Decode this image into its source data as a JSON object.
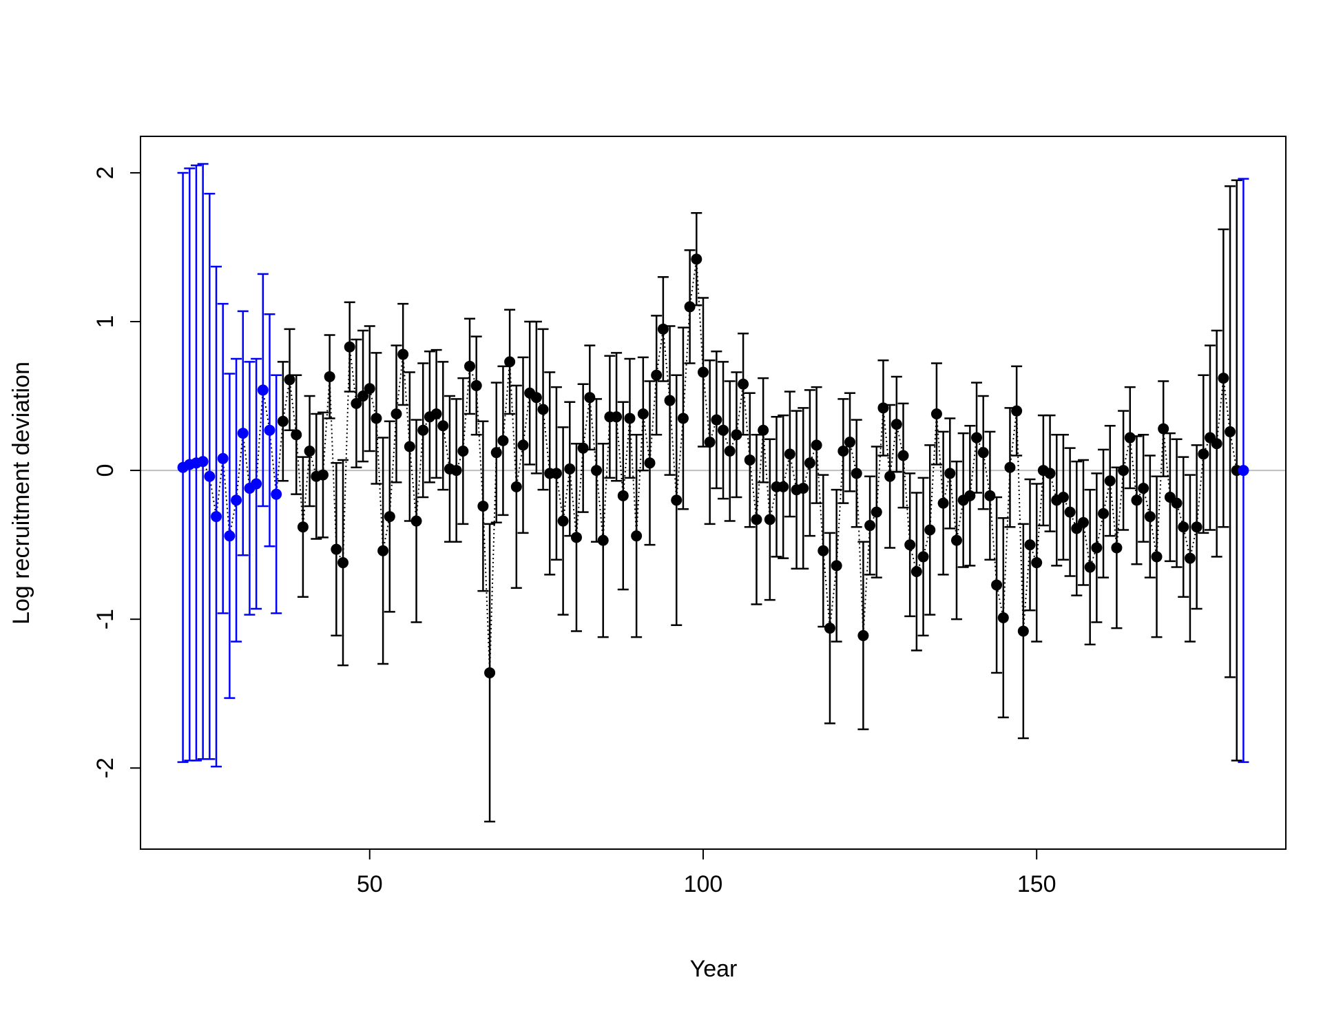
{
  "chart_data": {
    "type": "errorbar",
    "xlabel": "Year",
    "ylabel": "Log recruitment deviation",
    "xlim": [
      15.64,
      187.36
    ],
    "ylim": [
      -2.545,
      2.245
    ],
    "xticks": [
      50,
      100,
      150
    ],
    "yticks": [
      -2,
      -1,
      0,
      1,
      2
    ],
    "hline": 0,
    "hline_color": "#bebebe",
    "series": [
      {
        "color": "#0000ff",
        "x": [
          22,
          23,
          24,
          25,
          26,
          27,
          28,
          29,
          30,
          31,
          32,
          33,
          34,
          35,
          36
        ],
        "values": [
          0.02,
          0.04,
          0.05,
          0.06,
          -0.04,
          -0.31,
          0.08,
          -0.44,
          -0.2,
          0.25,
          -0.12,
          -0.09,
          0.54,
          0.27,
          -0.16
        ],
        "errors": [
          1.98,
          1.99,
          2.0,
          2.0,
          1.9,
          1.68,
          1.04,
          1.09,
          0.95,
          0.82,
          0.85,
          0.84,
          0.78,
          0.78,
          0.8
        ]
      },
      {
        "color": "#000000",
        "x": [
          37,
          38,
          39,
          40,
          41,
          42,
          43,
          44,
          45,
          46,
          47,
          48,
          49,
          50,
          51,
          52,
          53,
          54,
          55,
          56,
          57,
          58,
          59,
          60,
          61,
          62,
          63,
          64,
          65,
          66,
          67,
          68,
          69,
          70,
          71,
          72,
          73,
          74,
          75,
          76,
          77,
          78,
          79,
          80,
          81,
          82,
          83,
          84,
          85,
          86,
          87,
          88,
          89,
          90,
          91,
          92,
          93,
          94,
          95,
          96,
          97,
          98,
          99,
          100,
          101,
          102,
          103,
          104,
          105,
          106,
          107,
          108,
          109,
          110,
          111,
          112,
          113,
          114,
          115,
          116,
          117,
          118,
          119,
          120,
          121,
          122,
          123,
          124,
          125,
          126,
          127,
          128,
          129,
          130,
          131,
          132,
          133,
          134,
          135,
          136,
          137,
          138,
          139,
          140,
          141,
          142,
          143,
          144,
          145,
          146,
          147,
          148,
          149,
          150,
          151,
          152,
          153,
          154,
          155,
          156,
          157,
          158,
          159,
          160,
          161,
          162,
          163,
          164,
          165,
          166,
          167,
          168,
          169,
          170,
          171,
          172,
          173,
          174,
          175,
          176,
          177,
          178,
          179,
          180
        ],
        "values": [
          0.33,
          0.61,
          0.24,
          -0.38,
          0.13,
          -0.04,
          -0.03,
          0.63,
          -0.53,
          -0.62,
          0.83,
          0.45,
          0.5,
          0.55,
          0.35,
          -0.54,
          -0.31,
          0.38,
          0.78,
          0.16,
          -0.34,
          0.27,
          0.36,
          0.38,
          0.3,
          0.01,
          0,
          0.13,
          0.7,
          0.57,
          -0.24,
          -1.36,
          0.12,
          0.2,
          0.73,
          -0.11,
          0.17,
          0.52,
          0.49,
          0.41,
          -0.02,
          -0.02,
          -0.34,
          0.01,
          -0.45,
          0.15,
          0.49,
          0,
          -0.47,
          0.36,
          0.36,
          -0.17,
          0.35,
          -0.44,
          0.38,
          0.05,
          0.64,
          0.95,
          0.47,
          -0.2,
          0.35,
          1.1,
          1.42,
          0.66,
          0.19,
          0.34,
          0.27,
          0.13,
          0.24,
          0.58,
          0.07,
          -0.33,
          0.27,
          -0.33,
          -0.11,
          -0.11,
          0.11,
          -0.13,
          -0.12,
          0.05,
          0.17,
          -0.54,
          -1.06,
          -0.64,
          0.13,
          0.19,
          -0.02,
          -1.11,
          -0.37,
          -0.28,
          0.42,
          -0.04,
          0.31,
          0.1,
          -0.5,
          -0.68,
          -0.58,
          -0.4,
          0.38,
          -0.22,
          -0.02,
          -0.47,
          -0.2,
          -0.17,
          0.22,
          0.12,
          -0.17,
          -0.77,
          -0.99,
          0.02,
          0.4,
          -1.08,
          -0.5,
          -0.62,
          0,
          -0.02,
          -0.2,
          -0.18,
          -0.28,
          -0.39,
          -0.35,
          -0.65,
          -0.52,
          -0.29,
          -0.07,
          -0.52,
          0,
          0.22,
          -0.2,
          -0.12,
          -0.31,
          -0.58,
          0.28,
          -0.18,
          -0.22,
          -0.38,
          -0.59,
          -0.38,
          0.11,
          0.22,
          0.18,
          0.62,
          0.26,
          0
        ],
        "errors": [
          0.4,
          0.34,
          0.4,
          0.47,
          0.37,
          0.42,
          0.42,
          0.28,
          0.58,
          0.69,
          0.3,
          0.43,
          0.44,
          0.42,
          0.44,
          0.76,
          0.64,
          0.46,
          0.34,
          0.5,
          0.68,
          0.45,
          0.44,
          0.43,
          0.43,
          0.49,
          0.48,
          0.49,
          0.32,
          0.33,
          0.57,
          1.0,
          0.47,
          0.5,
          0.35,
          0.68,
          0.59,
          0.48,
          0.51,
          0.54,
          0.68,
          0.58,
          0.63,
          0.45,
          0.63,
          0.43,
          0.35,
          0.48,
          0.65,
          0.41,
          0.43,
          0.63,
          0.4,
          0.68,
          0.38,
          0.55,
          0.4,
          0.35,
          0.5,
          0.84,
          0.61,
          0.38,
          0.31,
          0.5,
          0.55,
          0.46,
          0.46,
          0.47,
          0.42,
          0.34,
          0.45,
          0.57,
          0.35,
          0.54,
          0.47,
          0.48,
          0.42,
          0.53,
          0.54,
          0.49,
          0.39,
          0.51,
          0.64,
          0.51,
          0.35,
          0.33,
          0.36,
          0.63,
          0.33,
          0.44,
          0.32,
          0.48,
          0.32,
          0.35,
          0.48,
          0.53,
          0.53,
          0.57,
          0.34,
          0.48,
          0.37,
          0.53,
          0.45,
          0.47,
          0.37,
          0.38,
          0.43,
          0.59,
          0.67,
          0.4,
          0.3,
          0.72,
          0.44,
          0.53,
          0.37,
          0.39,
          0.44,
          0.42,
          0.43,
          0.45,
          0.42,
          0.52,
          0.5,
          0.43,
          0.37,
          0.54,
          0.4,
          0.34,
          0.43,
          0.36,
          0.41,
          0.54,
          0.32,
          0.43,
          0.43,
          0.47,
          0.56,
          0.55,
          0.53,
          0.62,
          0.76,
          1.0,
          1.65,
          1.95
        ]
      },
      {
        "color": "#0000ff",
        "x": [
          181
        ],
        "values": [
          0
        ],
        "errors": [
          1.96
        ]
      }
    ]
  }
}
